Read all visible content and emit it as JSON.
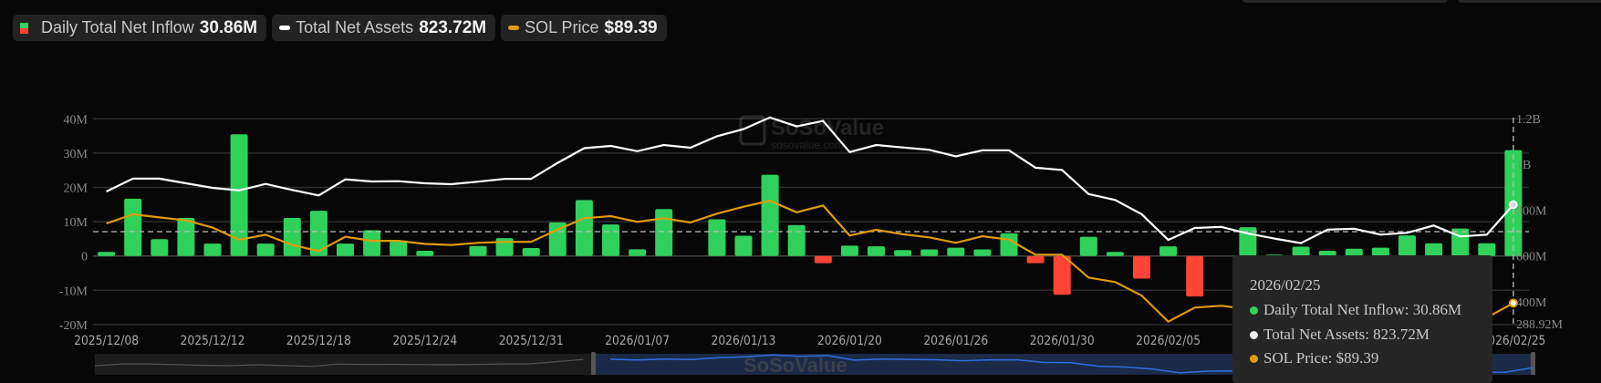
{
  "legend": {
    "inflow_label": "Daily Total Net Inflow",
    "inflow_value": "30.86M",
    "assets_label": "Total Net Assets",
    "assets_value": "823.72M",
    "price_label": "SOL Price",
    "price_value": "$89.39"
  },
  "colors": {
    "inflow_pos": "#2fd15a",
    "inflow_neg": "#ff4436",
    "assets": "#ffffff",
    "price": "#e09a0c",
    "background": "#070707"
  },
  "watermark": {
    "brand": "SoSoValue",
    "site": "sosovalue.com"
  },
  "tooltip": {
    "date": "2026/02/25",
    "inflow": "Daily Total Net Inflow: 30.86M",
    "assets": "Total Net Assets: 823.72M",
    "price": "SOL Price: $89.39"
  },
  "chart_data": {
    "type": "bar+line",
    "left_axis": {
      "ticks": [
        "40M",
        "30M",
        "20M",
        "10M",
        "0",
        "-10M",
        "-20M"
      ],
      "tick_values": [
        40,
        30,
        20,
        10,
        0,
        -10,
        -20
      ],
      "range": [
        -20,
        40
      ],
      "unit": "M"
    },
    "right_axis": {
      "ticks": [
        "1.2B",
        "1B",
        "800M",
        "600M",
        "400M",
        "288.92M"
      ],
      "tick_values": [
        1200,
        1000,
        800,
        600,
        400,
        288.92
      ],
      "unit": "M"
    },
    "x_tick_labels": [
      "2025/12/08",
      "2025/12/12",
      "2025/12/18",
      "2025/12/24",
      "2025/12/31",
      "2026/01/07",
      "2026/01/13",
      "2026/01/20",
      "2026/01/26",
      "2026/01/30",
      "2026/02/05",
      "2026/02/25"
    ],
    "x_tick_indices": [
      0,
      4,
      8,
      12,
      16,
      20,
      24,
      28,
      32,
      36,
      40,
      53
    ],
    "grid": true,
    "dates": [
      "2025/12/08",
      "2025/12/09",
      "2025/12/10",
      "2025/12/11",
      "2025/12/12",
      "2025/12/15",
      "2025/12/16",
      "2025/12/17",
      "2025/12/18",
      "2025/12/19",
      "2025/12/22",
      "2025/12/23",
      "2025/12/24",
      "2025/12/26",
      "2025/12/29",
      "2025/12/30",
      "2025/12/31",
      "2026/01/02",
      "2026/01/05",
      "2026/01/06",
      "2026/01/07",
      "2026/01/08",
      "2026/01/09",
      "2026/01/12",
      "2026/01/13",
      "2026/01/14",
      "2026/01/15",
      "2026/01/16",
      "2026/01/20",
      "2026/01/21",
      "2026/01/22",
      "2026/01/23",
      "2026/01/26",
      "2026/01/27",
      "2026/01/28",
      "2026/01/29",
      "2026/01/30",
      "2026/02/02",
      "2026/02/03",
      "2026/02/04",
      "2026/02/05",
      "2026/02/06",
      "2026/02/09",
      "2026/02/10",
      "2026/02/11",
      "2026/02/12",
      "2026/02/13",
      "2026/02/17",
      "2026/02/18",
      "2026/02/19",
      "2026/02/20",
      "2026/02/23",
      "2026/02/24",
      "2026/02/25"
    ],
    "series": [
      {
        "name": "Daily Total Net Inflow",
        "type": "bar",
        "axis": "left",
        "values": [
          1.2,
          16.7,
          4.9,
          11.1,
          3.6,
          35.5,
          3.6,
          11.1,
          13.2,
          3.6,
          7.5,
          4.4,
          1.5,
          0,
          2.9,
          5.2,
          2.3,
          9.8,
          16.3,
          9.2,
          1.95,
          13.7,
          0,
          10.7,
          5.9,
          23.7,
          9.0,
          -2.1,
          3.0,
          2.8,
          1.7,
          1.9,
          2.4,
          1.9,
          6.6,
          -2.1,
          -11.3,
          5.6,
          1.2,
          -6.6,
          2.8,
          -11.8,
          0,
          8.4,
          0.4,
          2.7,
          1.5,
          2.1,
          2.4,
          6.0,
          3.7,
          8.0,
          3.7,
          30.86
        ]
      },
      {
        "name": "Total Net Assets",
        "type": "line",
        "axis": "right",
        "values": [
          881,
          937,
          937,
          917,
          897,
          886,
          914,
          888,
          864,
          934,
          925,
          926,
          917,
          913,
          924,
          936,
          936,
          1006,
          1070,
          1080,
          1057,
          1084,
          1072,
          1122,
          1153,
          1204,
          1165,
          1189,
          1053,
          1084,
          1073,
          1063,
          1034,
          1061,
          1061,
          985,
          975,
          870,
          844,
          782,
          670,
          722,
          727,
          698,
          676,
          656,
          715,
          719,
          693,
          701,
          733,
          685,
          693,
          823.72
        ]
      },
      {
        "name": "SOL Price",
        "type": "line",
        "axis": "hidden",
        "values": [
          128.4,
          132.9,
          131.4,
          129.9,
          126.4,
          120.4,
          122.9,
          117.9,
          114.9,
          121.9,
          119.9,
          119.9,
          118.4,
          117.9,
          118.9,
          119.4,
          119.4,
          125.4,
          131.0,
          132.0,
          129.2,
          131.0,
          128.9,
          133.2,
          136.6,
          139.5,
          133.9,
          137.2,
          122.5,
          125.3,
          123.1,
          121.6,
          118.9,
          122.2,
          120.5,
          113.1,
          113.1,
          101.9,
          99.7,
          93.1,
          80.3,
          87.2,
          88.1,
          86.5,
          85.0,
          84.5,
          85.5,
          86.0,
          84.5,
          83.0,
          83.5,
          82.0,
          82.3,
          89.39
        ]
      }
    ]
  }
}
